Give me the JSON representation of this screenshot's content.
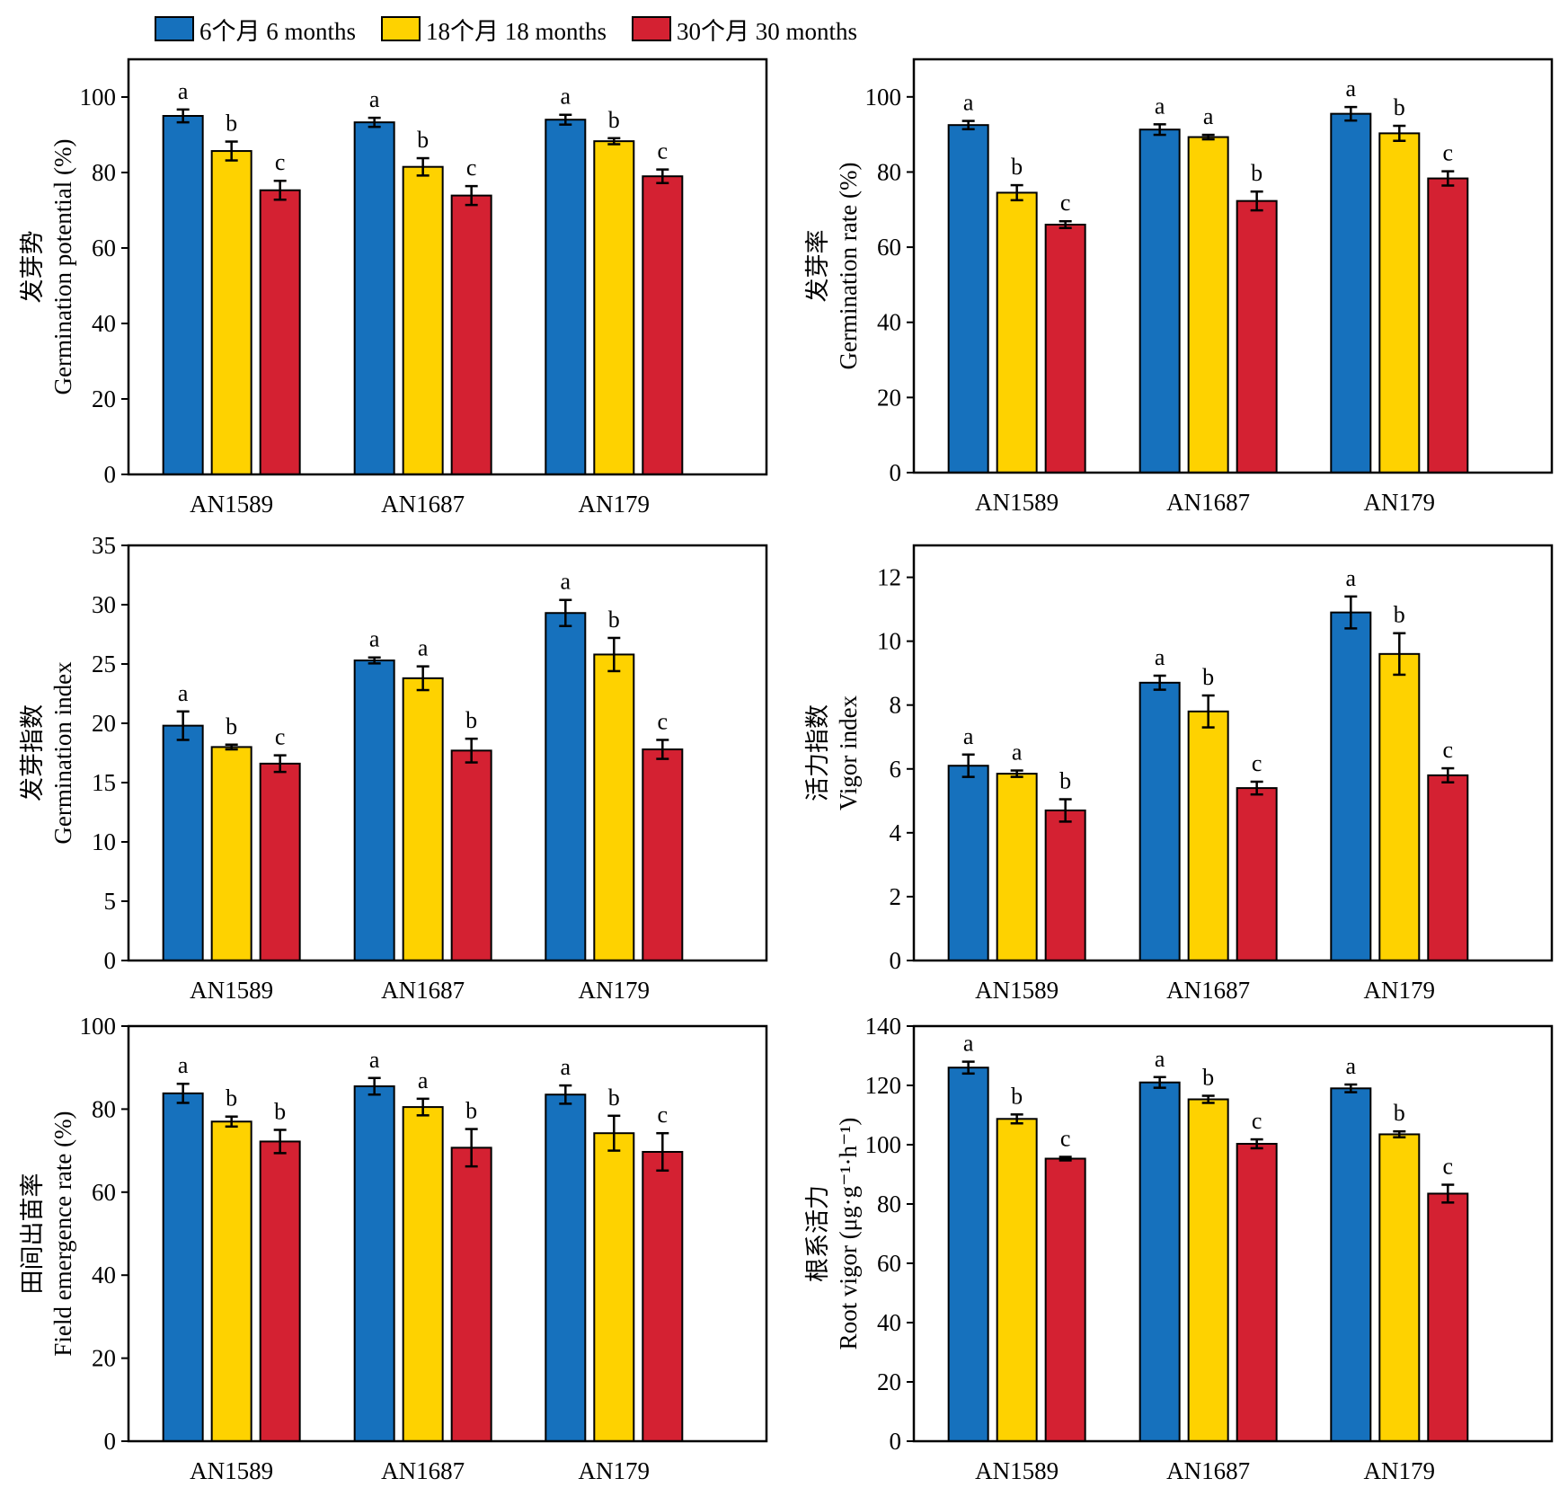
{
  "legend": [
    {
      "label": "6个月 6 months",
      "color": "#1671bd"
    },
    {
      "label": "18个月 18 months",
      "color": "#fed200"
    },
    {
      "label": "30个月 30 months",
      "color": "#d42132"
    }
  ],
  "chart_data": [
    {
      "type": "bar",
      "ylabel_cn": "发芽势",
      "ylabel": "Germination potential (%)",
      "categories": [
        "AN1589",
        "AN1687",
        "AN179"
      ],
      "ylim": [
        0,
        110
      ],
      "yticks": [
        0,
        20,
        40,
        60,
        80,
        100
      ],
      "series": [
        {
          "name": "6个月 6 months",
          "values": [
            95,
            93.3,
            94
          ],
          "errors": [
            1.7,
            1.2,
            1.3
          ],
          "letters": [
            "a",
            "a",
            "a"
          ]
        },
        {
          "name": "18个月 18 months",
          "values": [
            85.7,
            81.5,
            88.3
          ],
          "errors": [
            2.5,
            2.3,
            0.8
          ],
          "letters": [
            "b",
            "b",
            "b"
          ]
        },
        {
          "name": "30个月 30 months",
          "values": [
            75.3,
            73.9,
            79
          ],
          "errors": [
            2.5,
            2.5,
            1.8
          ],
          "letters": [
            "c",
            "c",
            "c"
          ]
        }
      ]
    },
    {
      "type": "bar",
      "ylabel_cn": "发芽率",
      "ylabel": "Germination rate (%)",
      "categories": [
        "AN1589",
        "AN1687",
        "AN179"
      ],
      "ylim": [
        0,
        110
      ],
      "yticks": [
        0,
        20,
        40,
        60,
        80,
        100
      ],
      "series": [
        {
          "name": "6个月 6 months",
          "values": [
            92.5,
            91.3,
            95.5
          ],
          "errors": [
            1.1,
            1.4,
            1.8
          ],
          "letters": [
            "a",
            "a",
            "a"
          ]
        },
        {
          "name": "18个月 18 months",
          "values": [
            74.5,
            89.3,
            90.3
          ],
          "errors": [
            2,
            0.6,
            2
          ],
          "letters": [
            "b",
            "a",
            "b"
          ]
        },
        {
          "name": "30个月 30 months",
          "values": [
            66,
            72.3,
            78.3
          ],
          "errors": [
            0.9,
            2.5,
            1.9
          ],
          "letters": [
            "c",
            "b",
            "c"
          ]
        }
      ]
    },
    {
      "type": "bar",
      "ylabel_cn": "发芽指数",
      "ylabel": "Germination index",
      "categories": [
        "AN1589",
        "AN1687",
        "AN179"
      ],
      "ylim": [
        0,
        35
      ],
      "yticks": [
        0,
        5,
        10,
        15,
        20,
        25,
        30,
        35
      ],
      "series": [
        {
          "name": "6个月 6 months",
          "values": [
            19.8,
            25.3,
            29.3
          ],
          "errors": [
            1.2,
            0.25,
            1.1
          ],
          "letters": [
            "a",
            "a",
            "a"
          ]
        },
        {
          "name": "18个月 18 months",
          "values": [
            18,
            23.8,
            25.8
          ],
          "errors": [
            0.2,
            1,
            1.4
          ],
          "letters": [
            "b",
            "a",
            "b"
          ]
        },
        {
          "name": "30个月 30 months",
          "values": [
            16.6,
            17.7,
            17.8
          ],
          "errors": [
            0.7,
            1,
            0.8
          ],
          "letters": [
            "c",
            "b",
            "c"
          ]
        }
      ]
    },
    {
      "type": "bar",
      "ylabel_cn": "活力指数",
      "ylabel": "Vigor index",
      "categories": [
        "AN1589",
        "AN1687",
        "AN179"
      ],
      "ylim": [
        0,
        13
      ],
      "yticks": [
        0,
        2,
        4,
        6,
        8,
        10,
        12
      ],
      "series": [
        {
          "name": "6个月 6 months",
          "values": [
            6.1,
            8.7,
            10.9
          ],
          "errors": [
            0.35,
            0.22,
            0.5
          ],
          "letters": [
            "a",
            "a",
            "a"
          ]
        },
        {
          "name": "18个月 18 months",
          "values": [
            5.85,
            7.8,
            9.6
          ],
          "errors": [
            0.1,
            0.5,
            0.65
          ],
          "letters": [
            "a",
            "b",
            "b"
          ]
        },
        {
          "name": "30个月 30 months",
          "values": [
            4.7,
            5.4,
            5.8
          ],
          "errors": [
            0.35,
            0.2,
            0.22
          ],
          "letters": [
            "b",
            "c",
            "c"
          ]
        }
      ]
    },
    {
      "type": "bar",
      "ylabel_cn": "田间出苗率",
      "ylabel": "Field emergence rate (%)",
      "categories": [
        "AN1589",
        "AN1687",
        "AN179"
      ],
      "ylim": [
        0,
        100
      ],
      "yticks": [
        0,
        20,
        40,
        60,
        80,
        100
      ],
      "series": [
        {
          "name": "6个月 6 months",
          "values": [
            83.8,
            85.5,
            83.5
          ],
          "errors": [
            2.3,
            2,
            2.2
          ],
          "letters": [
            "a",
            "a",
            "a"
          ]
        },
        {
          "name": "18个月 18 months",
          "values": [
            77,
            80.5,
            74.2
          ],
          "errors": [
            1.2,
            2,
            4.2
          ],
          "letters": [
            "b",
            "a",
            "b"
          ]
        },
        {
          "name": "30个月 30 months",
          "values": [
            72.2,
            70.7,
            69.7
          ],
          "errors": [
            2.8,
            4.5,
            4.5
          ],
          "letters": [
            "b",
            "b",
            "c"
          ]
        }
      ]
    },
    {
      "type": "bar",
      "ylabel_cn": "根系活力",
      "ylabel": "Root vigor (μg·g⁻¹·h⁻¹)",
      "categories": [
        "AN1589",
        "AN1687",
        "AN179"
      ],
      "ylim": [
        0,
        140
      ],
      "yticks": [
        0,
        20,
        40,
        60,
        80,
        100,
        120,
        140
      ],
      "series": [
        {
          "name": "6个月 6 months",
          "values": [
            126,
            121,
            119
          ],
          "errors": [
            2,
            1.8,
            1.3
          ],
          "letters": [
            "a",
            "a",
            "a"
          ]
        },
        {
          "name": "18个月 18 months",
          "values": [
            108.7,
            115.3,
            103.5
          ],
          "errors": [
            1.5,
            1.2,
            1
          ],
          "letters": [
            "b",
            "b",
            "b"
          ]
        },
        {
          "name": "30个月 30 months",
          "values": [
            95.3,
            100.3,
            83.5
          ],
          "errors": [
            0.6,
            1.5,
            3
          ],
          "letters": [
            "c",
            "c",
            "c"
          ]
        }
      ]
    }
  ]
}
